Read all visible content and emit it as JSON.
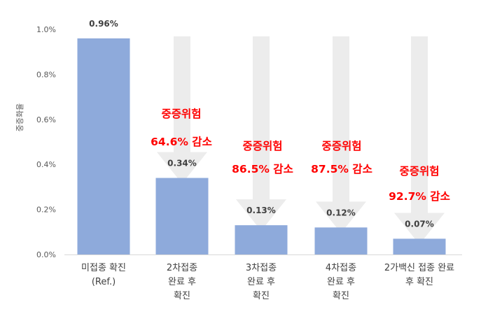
{
  "chart_data": {
    "type": "bar",
    "ylabel": "중증화율",
    "ylim": [
      0,
      1.0
    ],
    "yticks": [
      "0.0%",
      "0.2%",
      "0.4%",
      "0.6%",
      "0.8%",
      "1.0%"
    ],
    "categories": [
      [
        "미접종 확진",
        "(Ref.)"
      ],
      [
        "2차접종",
        "완료 후",
        "확진"
      ],
      [
        "3차접종",
        "완료 후",
        "확진"
      ],
      [
        "4차접종",
        "완료 후",
        "확진"
      ],
      [
        "2가백신 접종 완료",
        "후 확진"
      ]
    ],
    "values": [
      0.96,
      0.34,
      0.13,
      0.12,
      0.07
    ],
    "value_labels": [
      "0.96%",
      "0.34%",
      "0.13%",
      "0.12%",
      "0.07%"
    ],
    "annotations": [
      null,
      [
        "중증위험",
        "64.6% 감소"
      ],
      [
        "중증위험",
        "86.5% 감소"
      ],
      [
        "중증위험",
        "87.5% 감소"
      ],
      [
        "중증위험",
        "92.7% 감소"
      ]
    ],
    "colors": {
      "bar": "#8eaadb",
      "arrow": "#ececec",
      "annotation": "#ff0000",
      "axis": "#d9d9d9"
    },
    "grid": false
  }
}
